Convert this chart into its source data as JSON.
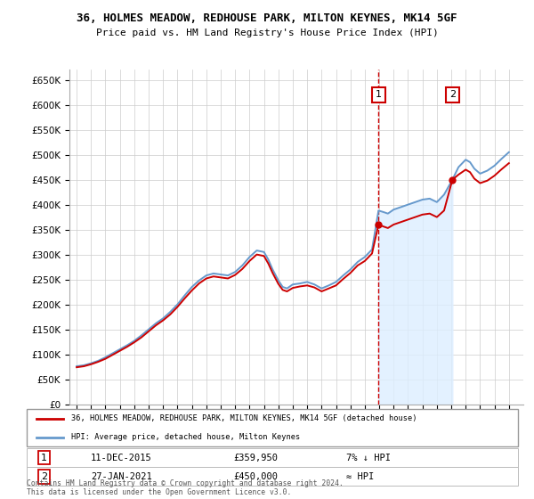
{
  "title_line1": "36, HOLMES MEADOW, REDHOUSE PARK, MILTON KEYNES, MK14 5GF",
  "title_line2": "Price paid vs. HM Land Registry's House Price Index (HPI)",
  "ylabel_ticks": [
    "£0",
    "£50K",
    "£100K",
    "£150K",
    "£200K",
    "£250K",
    "£300K",
    "£350K",
    "£400K",
    "£450K",
    "£500K",
    "£550K",
    "£600K",
    "£650K"
  ],
  "ytick_values": [
    0,
    50000,
    100000,
    150000,
    200000,
    250000,
    300000,
    350000,
    400000,
    450000,
    500000,
    550000,
    600000,
    650000
  ],
  "ylim": [
    0,
    670000
  ],
  "xlim_start": 1994.5,
  "xlim_end": 2026.0,
  "purchase1_date": 2015.95,
  "purchase1_price": 359950,
  "purchase2_date": 2021.08,
  "purchase2_price": 450000,
  "legend_line1": "36, HOLMES MEADOW, REDHOUSE PARK, MILTON KEYNES, MK14 5GF (detached house)",
  "legend_line2": "HPI: Average price, detached house, Milton Keynes",
  "annotation1_date": "11-DEC-2015",
  "annotation1_price": "£359,950",
  "annotation1_hpi": "7% ↓ HPI",
  "annotation2_date": "27-JAN-2021",
  "annotation2_price": "£450,000",
  "annotation2_hpi": "≈ HPI",
  "footer": "Contains HM Land Registry data © Crown copyright and database right 2024.\nThis data is licensed under the Open Government Licence v3.0.",
  "color_red": "#cc0000",
  "color_blue": "#6699cc",
  "color_shading": "#ddeeff",
  "color_dashed": "#cc0000",
  "background_color": "#ffffff",
  "grid_color": "#cccccc"
}
